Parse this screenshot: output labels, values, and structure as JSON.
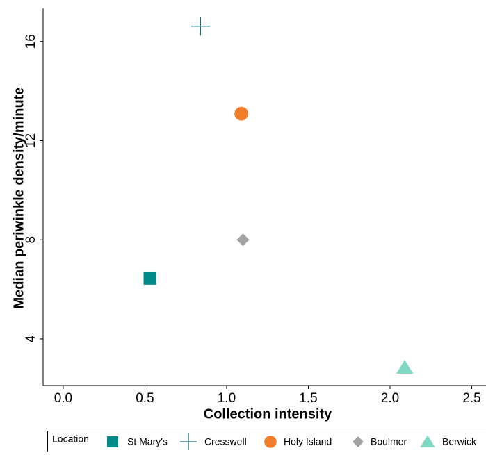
{
  "chart_data": {
    "type": "scatter",
    "x_label": "Collection intensity",
    "y_label": "Median periwinkle density/minute",
    "legend_title": "Location",
    "legend_position": "bottom",
    "xlim": [
      -0.123,
      2.587
    ],
    "ylim": [
      2.12,
      17.34
    ],
    "xticks": [
      {
        "value": 0,
        "label": "0.0"
      },
      {
        "value": 0.5,
        "label": "0.5"
      },
      {
        "value": 1,
        "label": "1.0"
      },
      {
        "value": 1.5,
        "label": "1.5"
      },
      {
        "value": 2,
        "label": "2.0"
      },
      {
        "value": 2.5,
        "label": "2.5"
      }
    ],
    "yticks": [
      4,
      8,
      12,
      16
    ],
    "series": [
      {
        "name": "St Mary's",
        "color": "#008b8b",
        "marker": "square",
        "x": [
          0.53
        ],
        "values": [
          6.44
        ]
      },
      {
        "name": "Cresswell",
        "color": "#1b6b74",
        "marker": "plus",
        "x": [
          0.84
        ],
        "values": [
          16.62
        ]
      },
      {
        "name": "Holy Island",
        "color": "#f07d2a",
        "marker": "circle",
        "x": [
          1.09
        ],
        "values": [
          13.09
        ]
      },
      {
        "name": "Boulmer",
        "color": "#a3a3a3",
        "marker": "diamond",
        "x": [
          1.1
        ],
        "values": [
          8.0
        ]
      },
      {
        "name": "Berwick",
        "color": "#7fd8c3",
        "marker": "triangle",
        "x": [
          2.09
        ],
        "values": [
          2.85
        ]
      }
    ]
  }
}
